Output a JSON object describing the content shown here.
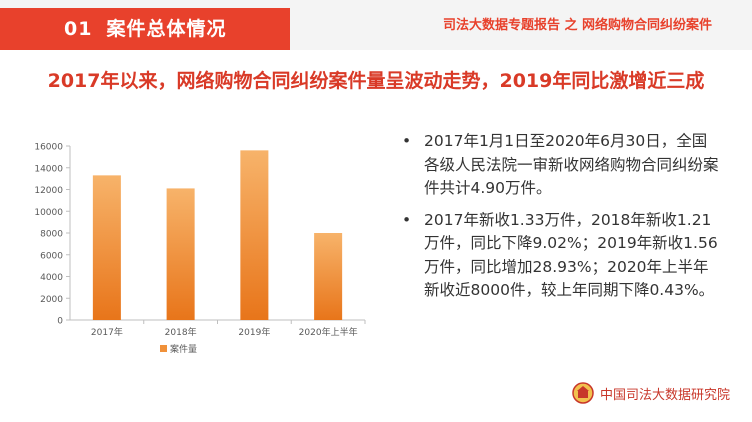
{
  "header": {
    "section_number": "01",
    "section_title": "案件总体情况",
    "report_name": "司法大数据专题报告 之 网络购物合同纠纷案件"
  },
  "title": "2017年以来，网络购物合同纠纷案件量呈波动走势，2019年同比激增近三成",
  "chart_data": {
    "type": "bar",
    "categories": [
      "2017年",
      "2018年",
      "2019年",
      "2020年上半年"
    ],
    "series": [
      {
        "name": "案件量",
        "values": [
          13300,
          12100,
          15600,
          8000
        ]
      }
    ],
    "ylim": [
      0,
      16000
    ],
    "yticks": [
      0,
      2000,
      4000,
      6000,
      8000,
      10000,
      12000,
      14000,
      16000
    ],
    "grid": false,
    "legend": "bottom"
  },
  "colors": {
    "accent": "#e8412c",
    "bar_top": "#f7b36a",
    "bar_bottom": "#e8751a"
  },
  "bullets": [
    "2017年1月1日至2020年6月30日，全国各级人民法院一审新收网络购物合同纠纷案件共计4.90万件。",
    "2017年新收1.33万件，2018年新收1.21万件，同比下降9.02%；2019年新收1.56万件，同比增加28.93%；2020年上半年新收近8000件，较上年同期下降0.43%。"
  ],
  "footer": {
    "org_name": "中国司法大数据研究院",
    "icon": "court-emblem-icon"
  }
}
